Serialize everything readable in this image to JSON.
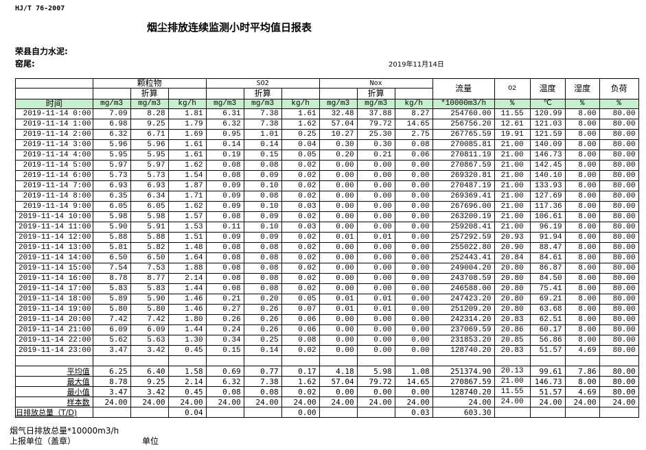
{
  "header": {
    "standard": "HJ/T  76-2007",
    "title": "烟尘排放连续监测小时平均值日报表",
    "company": "荣县自力水泥:",
    "kiln": "窑尾:",
    "date": "2019年11月14日"
  },
  "table": {
    "groups": {
      "particulate": "颗粒物",
      "so2": "SO2",
      "nox": "Nox",
      "flow": "流量",
      "o2": "O2",
      "temp": "温度",
      "humidity": "湿度",
      "load": "负荷"
    },
    "converted_label": "折算",
    "time_label": "时间",
    "units": [
      "mg/m3",
      "mg/m3",
      "kg/h",
      "mg/m3",
      "mg/m3",
      "kg/h",
      "mg/m3",
      "mg/m3",
      "kg/h",
      "*10000m3/h",
      "%",
      "℃",
      "%",
      "%"
    ],
    "header_fill": "#c6efce",
    "rows": [
      [
        "2019-11-14 0:00",
        "7.09",
        "8.28",
        "1.81",
        "6.31",
        "7.38",
        "1.61",
        "32.48",
        "37.88",
        "8.27",
        "254760.00",
        "11.55",
        "120.99",
        "8.00",
        "80.00"
      ],
      [
        "2019-11-14 1:00",
        "6.98",
        "9.25",
        "1.79",
        "6.32",
        "7.38",
        "1.62",
        "57.04",
        "79.72",
        "14.65",
        "256756.20",
        "12.61",
        "121.03",
        "8.00",
        "80.00"
      ],
      [
        "2019-11-14 2:00",
        "6.32",
        "6.71",
        "1.69",
        "0.95",
        "1.01",
        "0.25",
        "10.27",
        "25.30",
        "2.75",
        "267765.59",
        "19.91",
        "121.59",
        "8.00",
        "80.00"
      ],
      [
        "2019-11-14 3:00",
        "5.96",
        "5.96",
        "1.61",
        "0.14",
        "0.14",
        "0.04",
        "0.30",
        "0.30",
        "0.08",
        "270085.81",
        "21.00",
        "140.09",
        "8.00",
        "80.00"
      ],
      [
        "2019-11-14 4:00",
        "5.95",
        "5.95",
        "1.61",
        "0.19",
        "0.15",
        "0.05",
        "0.20",
        "0.21",
        "0.06",
        "270811.19",
        "21.00",
        "146.73",
        "8.00",
        "80.00"
      ],
      [
        "2019-11-14 5:00",
        "5.97",
        "5.97",
        "1.62",
        "0.08",
        "0.08",
        "0.02",
        "0.00",
        "0.00",
        "0.00",
        "270867.59",
        "21.00",
        "142.45",
        "8.00",
        "80.00"
      ],
      [
        "2019-11-14 6:00",
        "5.73",
        "5.73",
        "1.54",
        "0.08",
        "0.09",
        "0.02",
        "0.00",
        "0.00",
        "0.00",
        "269320.81",
        "21.00",
        "140.10",
        "8.00",
        "80.00"
      ],
      [
        "2019-11-14 7:00",
        "6.93",
        "6.93",
        "1.87",
        "0.09",
        "0.10",
        "0.02",
        "0.00",
        "0.00",
        "0.00",
        "270487.19",
        "21.00",
        "133.93",
        "8.00",
        "80.00"
      ],
      [
        "2019-11-14 8:00",
        "6.35",
        "6.34",
        "1.71",
        "0.09",
        "0.08",
        "0.02",
        "0.00",
        "0.00",
        "0.00",
        "269369.41",
        "21.00",
        "127.69",
        "8.00",
        "80.00"
      ],
      [
        "2019-11-14 9:00",
        "6.05",
        "6.05",
        "1.62",
        "0.09",
        "0.10",
        "0.03",
        "0.00",
        "0.00",
        "0.00",
        "267696.00",
        "21.00",
        "117.36",
        "8.00",
        "80.00"
      ],
      [
        "2019-11-14 10:00",
        "5.98",
        "5.98",
        "1.57",
        "0.08",
        "0.09",
        "0.02",
        "0.00",
        "0.00",
        "0.00",
        "263200.19",
        "21.00",
        "106.61",
        "8.00",
        "80.00"
      ],
      [
        "2019-11-14 11:00",
        "5.90",
        "5.91",
        "1.53",
        "0.11",
        "0.10",
        "0.03",
        "0.00",
        "0.00",
        "0.00",
        "259208.41",
        "21.00",
        "96.19",
        "8.00",
        "80.00"
      ],
      [
        "2019-11-14 12:00",
        "5.88",
        "5.88",
        "1.51",
        "0.09",
        "0.09",
        "0.02",
        "0.01",
        "0.01",
        "0.00",
        "257292.59",
        "20.93",
        "91.94",
        "8.00",
        "80.00"
      ],
      [
        "2019-11-14 13:00",
        "5.81",
        "5.82",
        "1.48",
        "0.08",
        "0.08",
        "0.02",
        "0.00",
        "0.00",
        "0.00",
        "255022.80",
        "20.90",
        "88.47",
        "8.00",
        "80.00"
      ],
      [
        "2019-11-14 14:00",
        "6.50",
        "6.50",
        "1.64",
        "0.08",
        "0.08",
        "0.02",
        "0.00",
        "0.00",
        "0.00",
        "252443.41",
        "20.84",
        "84.61",
        "8.00",
        "80.00"
      ],
      [
        "2019-11-14 15:00",
        "7.54",
        "7.53",
        "1.88",
        "0.08",
        "0.08",
        "0.02",
        "0.00",
        "0.00",
        "0.00",
        "249004.20",
        "20.80",
        "86.87",
        "8.00",
        "80.00"
      ],
      [
        "2019-11-14 16:00",
        "8.78",
        "8.77",
        "2.14",
        "0.08",
        "0.08",
        "0.02",
        "0.00",
        "0.00",
        "0.00",
        "243708.59",
        "20.80",
        "84.50",
        "8.00",
        "80.00"
      ],
      [
        "2019-11-14 17:00",
        "5.83",
        "5.83",
        "1.44",
        "0.08",
        "0.08",
        "0.02",
        "0.00",
        "0.00",
        "0.00",
        "246588.00",
        "20.80",
        "75.41",
        "8.00",
        "80.00"
      ],
      [
        "2019-11-14 18:00",
        "5.89",
        "5.90",
        "1.46",
        "0.21",
        "0.20",
        "0.05",
        "0.01",
        "0.01",
        "0.00",
        "247423.20",
        "20.80",
        "69.21",
        "8.00",
        "80.00"
      ],
      [
        "2019-11-14 19:00",
        "5.80",
        "5.80",
        "1.46",
        "0.27",
        "0.26",
        "0.07",
        "0.01",
        "0.01",
        "0.00",
        "251209.20",
        "20.80",
        "63.68",
        "8.00",
        "80.00"
      ],
      [
        "2019-11-14 20:00",
        "7.42",
        "7.42",
        "1.80",
        "0.26",
        "0.26",
        "0.06",
        "0.00",
        "0.00",
        "0.00",
        "242314.20",
        "20.83",
        "62.51",
        "8.00",
        "80.00"
      ],
      [
        "2019-11-14 21:00",
        "6.09",
        "6.09",
        "1.44",
        "0.24",
        "0.26",
        "0.06",
        "0.00",
        "0.00",
        "0.00",
        "237069.59",
        "20.86",
        "60.17",
        "8.00",
        "80.00"
      ],
      [
        "2019-11-14 22:00",
        "5.62",
        "5.63",
        "1.30",
        "0.34",
        "0.25",
        "0.08",
        "0.00",
        "0.00",
        "0.00",
        "231853.20",
        "20.85",
        "56.86",
        "8.00",
        "80.00"
      ],
      [
        "2019-11-14 23:00",
        "3.47",
        "3.42",
        "0.45",
        "0.15",
        "0.14",
        "0.02",
        "0.00",
        "0.00",
        "0.00",
        "128740.20",
        "20.83",
        "51.57",
        "4.69",
        "80.00"
      ]
    ],
    "summary": [
      [
        "平均值",
        "6.25",
        "6.40",
        "1.58",
        "0.69",
        "0.77",
        "0.17",
        "4.18",
        "5.98",
        "1.08",
        "251374.90",
        "20.13",
        "99.61",
        "7.86",
        "80.00"
      ],
      [
        "最大值",
        "8.78",
        "9.25",
        "2.14",
        "6.32",
        "7.38",
        "1.62",
        "57.04",
        "79.72",
        "14.65",
        "270867.59",
        "21.00",
        "146.73",
        "8.00",
        "80.00"
      ],
      [
        "最小值",
        "3.47",
        "3.42",
        "0.45",
        "0.08",
        "0.08",
        "0.02",
        "0.00",
        "0.00",
        "0.00",
        "128740.20",
        "11.55",
        "51.57",
        "4.69",
        "80.00"
      ],
      [
        "样本数",
        "24.00",
        "24.00",
        "24.00",
        "24.00",
        "24.00",
        "24.00",
        "24.00",
        "24.00",
        "24.00",
        "24.00",
        "24.00",
        "24.00",
        "24.00",
        "24.00"
      ]
    ],
    "total": [
      "日排放总量（T/D)",
      "",
      "",
      "0.04",
      "",
      "",
      "0.00",
      "",
      "",
      "0.03",
      "603.30",
      "",
      "",
      "",
      ""
    ]
  },
  "footer": {
    "flue_gas_total": "烟气日排放总量*10000m3/h",
    "reporting_unit": "上报单位（盖章）",
    "unit": "单位"
  }
}
